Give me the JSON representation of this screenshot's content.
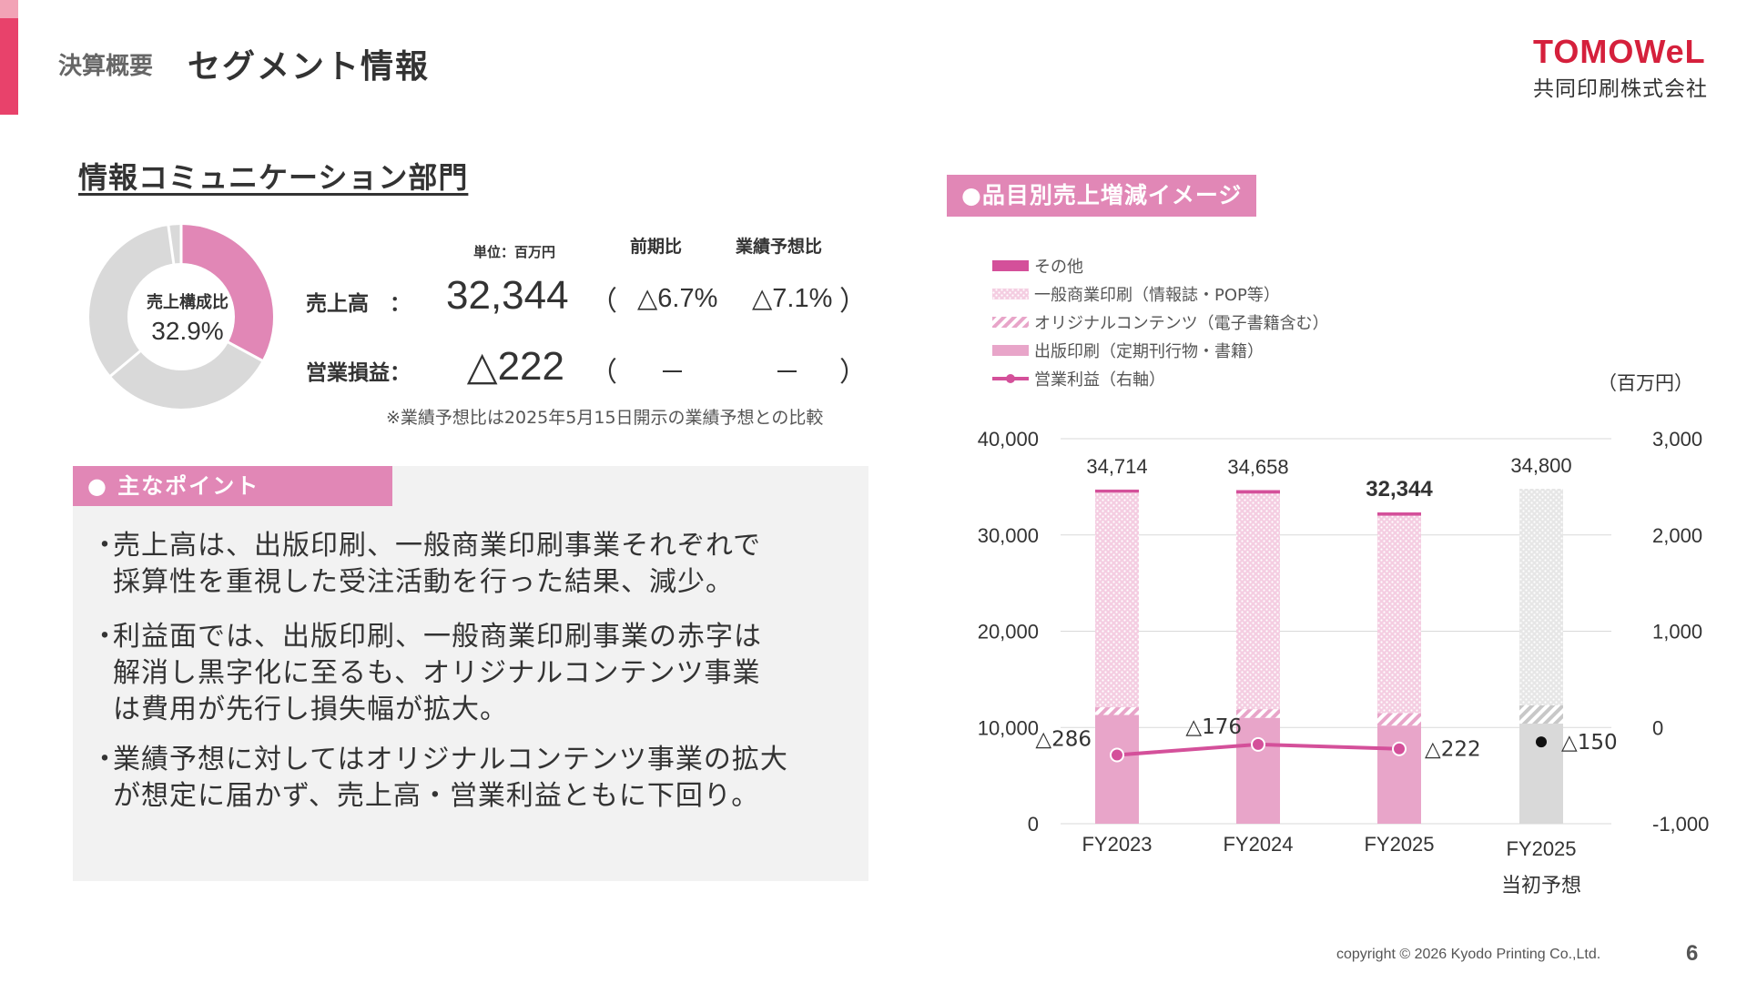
{
  "header": {
    "crumb": "決算概要",
    "title": "セグメント情報",
    "logo_word": "TOMOWeL",
    "logo_sub": "共同印刷株式会社"
  },
  "section_title": "情報コミュニケーション部門",
  "donut": {
    "label": "売上構成比",
    "value": "32.9%",
    "share": 0.329,
    "colors": {
      "segment": "#e187b6",
      "rest": "#d9d9d9"
    }
  },
  "kpi": {
    "unit": "単位：百万円",
    "col_yoy": "前期比",
    "col_forecast": "業績予想比",
    "rows": [
      {
        "label": "売上高　：",
        "value": "32,344",
        "open": "（",
        "yoy": "△6.7%",
        "forecast": "△7.1%",
        "close": "）"
      },
      {
        "label": "営業損益：",
        "value": "△222",
        "open": "（",
        "yoy": "－",
        "forecast": "－",
        "close": "）"
      }
    ],
    "note": "※業績予想比は2025年5月15日開示の業績予想との比較"
  },
  "points": {
    "title": "● 主なポイント",
    "bullet": "・",
    "items": [
      {
        "lines": [
          "売上高は、出版印刷、一般商業印刷事業それぞれで",
          "採算性を重視した受注活動を行った結果、減少。"
        ]
      },
      {
        "lines": [
          "利益面では、出版印刷、一般商業印刷事業の赤字は",
          "解消し黒字化に至るも、オリジナルコンテンツ事業",
          "は費用が先行し損失幅が拡大。"
        ]
      },
      {
        "lines": [
          "業績予想に対してはオリジナルコンテンツ事業の拡大",
          "が想定に届かず、売上高・営業利益ともに下回り。"
        ]
      }
    ]
  },
  "chart_title": "●品目別売上増減イメージ",
  "chart_data": {
    "type": "bar",
    "stacked": true,
    "title": "",
    "unit_right": "（百万円）",
    "categories": [
      "FY2023",
      "FY2024",
      "FY2025",
      "FY2025\n当初予想"
    ],
    "category_lines": [
      [
        "FY2023"
      ],
      [
        "FY2024"
      ],
      [
        "FY2025"
      ],
      [
        "FY2025",
        "当初予想"
      ]
    ],
    "totals": [
      34714,
      34658,
      32344,
      34800
    ],
    "total_labels": [
      "34,714",
      "34,658",
      "32,344",
      "34,800"
    ],
    "y_left": {
      "min": 0,
      "max": 40000,
      "ticks": [
        0,
        10000,
        20000,
        30000,
        40000
      ],
      "tick_labels": [
        "0",
        "10,000",
        "20,000",
        "30,000",
        "40,000"
      ]
    },
    "y_right": {
      "min": -1000,
      "max": 3000,
      "ticks": [
        -1000,
        0,
        1000,
        2000,
        3000
      ],
      "tick_labels": [
        "-1,000",
        "0",
        "1,000",
        "2,000",
        "3,000"
      ]
    },
    "series": [
      {
        "name": "出版印刷（定期刊行物・書籍）",
        "kind": "bar",
        "values": [
          11300,
          11000,
          10200,
          10400
        ],
        "color": "#e8a5c9"
      },
      {
        "name": "オリジナルコンテンツ（電子書籍含む）",
        "kind": "bar-hatched",
        "values": [
          800,
          900,
          1300,
          1900
        ],
        "color": "#e8a5c9"
      },
      {
        "name": "一般商業印刷（情報誌・POP等）",
        "kind": "bar-dotted",
        "values": [
          22300,
          22400,
          20500,
          22500
        ],
        "color": "#e8a5c9"
      },
      {
        "name": "その他",
        "kind": "bar",
        "values": [
          314,
          358,
          344,
          0
        ],
        "color": "#d4509a"
      },
      {
        "name": "営業利益（右軸）",
        "kind": "line",
        "axis": "right",
        "values": [
          -286,
          -176,
          -222,
          -150
        ],
        "labels": [
          "△286",
          "△176",
          "△222",
          "△150"
        ],
        "color": "#d4509a"
      }
    ],
    "legend_order": [
      "その他",
      "一般商業印刷（情報誌・POP等）",
      "オリジナルコンテンツ（電子書籍含む）",
      "出版印刷（定期刊行物・書籍）",
      "営業利益（右軸）"
    ],
    "legend_position": "top-left",
    "forecast_color": "#d9d9d9",
    "grid": true
  },
  "footer": {
    "copyright": "copyright © 2026 Kyodo Printing Co.,Ltd.",
    "page": "6"
  }
}
